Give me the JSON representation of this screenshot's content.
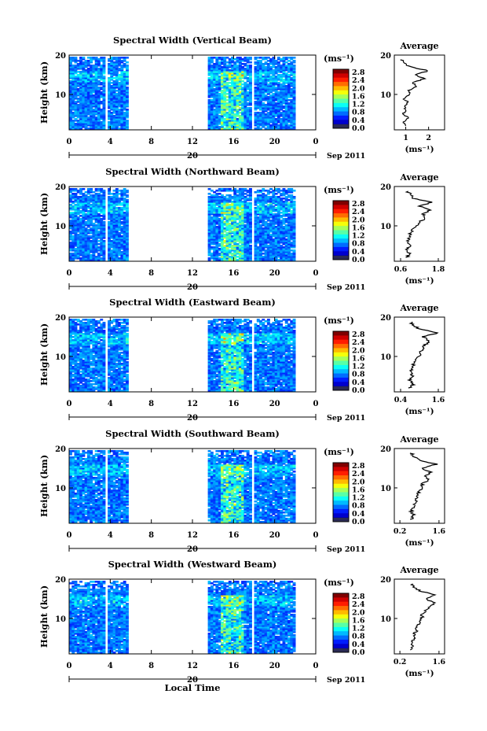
{
  "figure": {
    "xlabel": "Local Time",
    "colorbar_unit": "(ms⁻¹)",
    "date_label_day": "20",
    "date_label_month": "Sep 2011",
    "avg_title": "Average",
    "avg_xlabel": "(ms⁻¹)"
  },
  "chart_data": [
    {
      "type": "heatmap",
      "title": "Spectral Width (Vertical Beam)",
      "ylabel": "Height (km)",
      "x_ticks": [
        "0",
        "4",
        "8",
        "12",
        "16",
        "20",
        "0"
      ],
      "y_ticks": [
        "20",
        "10"
      ],
      "xlim": [
        0,
        24
      ],
      "ylim": [
        1,
        20
      ],
      "colorbar_ticks": [
        "2.8",
        "2.4",
        "2.0",
        "1.6",
        "1.2",
        "0.8",
        "0.4",
        "0.0"
      ],
      "avg_ticks": [
        "1",
        "2"
      ],
      "avg_xlim": [
        0.5,
        2.7
      ],
      "avg_profile": [
        [
          1.0,
          2
        ],
        [
          0.9,
          3
        ],
        [
          1.1,
          4
        ],
        [
          0.9,
          5
        ],
        [
          1.0,
          6
        ],
        [
          0.9,
          7
        ],
        [
          1.1,
          8
        ],
        [
          0.9,
          9
        ],
        [
          1.2,
          10
        ],
        [
          1.1,
          11
        ],
        [
          1.5,
          12
        ],
        [
          1.3,
          13
        ],
        [
          1.8,
          14
        ],
        [
          1.4,
          15
        ],
        [
          2.0,
          16
        ],
        [
          1.2,
          17
        ],
        [
          0.9,
          18
        ],
        [
          0.8,
          19
        ]
      ]
    },
    {
      "type": "heatmap",
      "title": "Spectral Width (Northward Beam)",
      "ylabel": "Height (km)",
      "x_ticks": [
        "0",
        "4",
        "8",
        "12",
        "16",
        "20",
        "0"
      ],
      "y_ticks": [
        "20",
        "10"
      ],
      "xlim": [
        0,
        24
      ],
      "ylim": [
        1,
        20
      ],
      "colorbar_ticks": [
        "2.8",
        "2.4",
        "2.0",
        "1.6",
        "1.2",
        "0.8",
        "0.4",
        "0.0"
      ],
      "avg_ticks": [
        "0.6",
        "1.8"
      ],
      "avg_xlim": [
        0.4,
        2.0
      ],
      "avg_profile": [
        [
          0.8,
          2
        ],
        [
          0.9,
          3
        ],
        [
          0.8,
          4
        ],
        [
          0.9,
          5
        ],
        [
          0.8,
          6
        ],
        [
          0.9,
          7
        ],
        [
          0.9,
          8
        ],
        [
          1.0,
          9
        ],
        [
          1.1,
          10
        ],
        [
          1.2,
          11
        ],
        [
          1.4,
          12
        ],
        [
          1.3,
          13
        ],
        [
          1.5,
          14
        ],
        [
          1.2,
          15
        ],
        [
          1.6,
          16
        ],
        [
          1.0,
          17
        ],
        [
          0.9,
          18
        ],
        [
          0.8,
          19
        ]
      ]
    },
    {
      "type": "heatmap",
      "title": "Spectral Width (Eastward Beam)",
      "ylabel": "Height (km)",
      "x_ticks": [
        "0",
        "4",
        "8",
        "12",
        "16",
        "20",
        "0"
      ],
      "y_ticks": [
        "20",
        "10"
      ],
      "xlim": [
        0,
        24
      ],
      "ylim": [
        1,
        20
      ],
      "colorbar_ticks": [
        "2.8",
        "2.4",
        "2.0",
        "1.6",
        "1.2",
        "0.8",
        "0.4",
        "0.0"
      ],
      "avg_ticks": [
        "0.4",
        "1.6"
      ],
      "avg_xlim": [
        0.2,
        1.8
      ],
      "avg_profile": [
        [
          0.7,
          2
        ],
        [
          0.8,
          3
        ],
        [
          0.7,
          4
        ],
        [
          0.8,
          5
        ],
        [
          0.7,
          6
        ],
        [
          0.8,
          7
        ],
        [
          0.8,
          8
        ],
        [
          0.9,
          9
        ],
        [
          1.0,
          10
        ],
        [
          1.0,
          11
        ],
        [
          1.1,
          12
        ],
        [
          1.2,
          13
        ],
        [
          1.3,
          14
        ],
        [
          1.1,
          15
        ],
        [
          1.6,
          16
        ],
        [
          1.0,
          17
        ],
        [
          0.8,
          18
        ],
        [
          0.7,
          19
        ]
      ]
    },
    {
      "type": "heatmap",
      "title": "Spectral Width (Southward Beam)",
      "ylabel": "Height (km)",
      "x_ticks": [
        "0",
        "4",
        "8",
        "12",
        "16",
        "20",
        "0"
      ],
      "y_ticks": [
        "20",
        "10"
      ],
      "xlim": [
        0,
        24
      ],
      "ylim": [
        1,
        20
      ],
      "colorbar_ticks": [
        "2.8",
        "2.4",
        "2.0",
        "1.6",
        "1.2",
        "0.8",
        "0.4",
        "0.0"
      ],
      "avg_ticks": [
        "0.2",
        "1.6"
      ],
      "avg_xlim": [
        0.0,
        1.8
      ],
      "avg_profile": [
        [
          0.6,
          2
        ],
        [
          0.7,
          3
        ],
        [
          0.6,
          4
        ],
        [
          0.7,
          5
        ],
        [
          0.7,
          6
        ],
        [
          0.8,
          7
        ],
        [
          0.8,
          8
        ],
        [
          0.9,
          9
        ],
        [
          1.0,
          10
        ],
        [
          1.0,
          11
        ],
        [
          1.2,
          12
        ],
        [
          1.1,
          13
        ],
        [
          1.3,
          14
        ],
        [
          1.0,
          15
        ],
        [
          1.5,
          16
        ],
        [
          0.9,
          17
        ],
        [
          0.7,
          18
        ],
        [
          0.6,
          19
        ]
      ]
    },
    {
      "type": "heatmap",
      "title": "Spectral Width (Westward Beam)",
      "ylabel": "Height (km)",
      "x_ticks": [
        "0",
        "4",
        "8",
        "12",
        "16",
        "20",
        "0"
      ],
      "y_ticks": [
        "20",
        "10"
      ],
      "xlim": [
        0,
        24
      ],
      "ylim": [
        1,
        20
      ],
      "colorbar_ticks": [
        "2.8",
        "2.4",
        "2.0",
        "1.6",
        "1.2",
        "0.8",
        "0.4",
        "0.0"
      ],
      "avg_ticks": [
        "0.2",
        "1.6"
      ],
      "avg_xlim": [
        0.0,
        1.8
      ],
      "avg_profile": [
        [
          0.6,
          2
        ],
        [
          0.7,
          3
        ],
        [
          0.6,
          4
        ],
        [
          0.7,
          5
        ],
        [
          0.7,
          6
        ],
        [
          0.8,
          7
        ],
        [
          0.8,
          8
        ],
        [
          0.9,
          9
        ],
        [
          1.0,
          10
        ],
        [
          1.0,
          11
        ],
        [
          1.1,
          12
        ],
        [
          1.3,
          13
        ],
        [
          1.4,
          14
        ],
        [
          1.1,
          15
        ],
        [
          1.5,
          16
        ],
        [
          0.9,
          17
        ],
        [
          0.7,
          18
        ],
        [
          0.6,
          19
        ]
      ]
    }
  ]
}
